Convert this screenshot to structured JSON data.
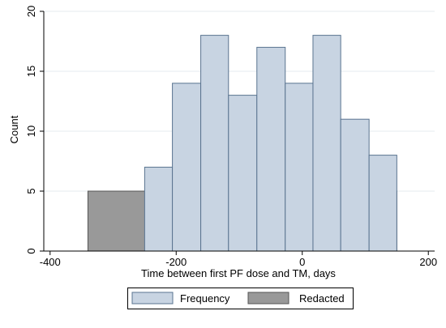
{
  "chart_data": {
    "type": "bar",
    "xlabel": "Time between first PF dose and TM, days",
    "ylabel": "Count",
    "xlim": [
      -410,
      210
    ],
    "ylim": [
      0,
      20
    ],
    "xticks": [
      -400,
      -200,
      0,
      200
    ],
    "xtick_labels": [
      "-400",
      "-200",
      "0",
      "200"
    ],
    "yticks": [
      0,
      5,
      10,
      15,
      20
    ],
    "ytick_labels": [
      "0",
      "5",
      "10",
      "15",
      "20"
    ],
    "grid": true,
    "legend_position": "bottom",
    "series": [
      {
        "name": "Frequency",
        "color": "#c8d4e2",
        "stroke": "#5a7490",
        "bins": [
          {
            "x0": -250,
            "x1": -206,
            "value": 7
          },
          {
            "x0": -206,
            "x1": -161,
            "value": 14
          },
          {
            "x0": -161,
            "x1": -117,
            "value": 18
          },
          {
            "x0": -117,
            "x1": -72,
            "value": 13
          },
          {
            "x0": -72,
            "x1": -27,
            "value": 17
          },
          {
            "x0": -27,
            "x1": 17,
            "value": 14
          },
          {
            "x0": 17,
            "x1": 61,
            "value": 18
          },
          {
            "x0": 61,
            "x1": 106,
            "value": 11
          },
          {
            "x0": 106,
            "x1": 150,
            "value": 8
          }
        ]
      },
      {
        "name": "Redacted",
        "color": "#999999",
        "stroke": "#555555",
        "bins": [
          {
            "x0": -340,
            "x1": 150,
            "value": 5
          }
        ]
      }
    ]
  }
}
